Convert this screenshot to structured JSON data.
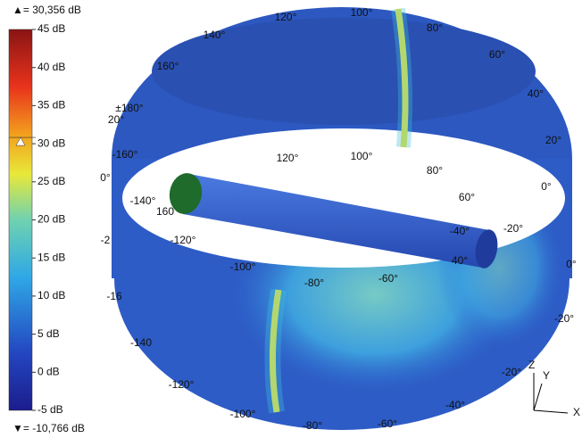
{
  "colorbar": {
    "max_label": "▲= 30,356 dB",
    "min_label": "▼= -10,766 dB",
    "lim": [
      -5,
      45
    ],
    "ticks": [
      {
        "value": 45,
        "label": "45 dB"
      },
      {
        "value": 40,
        "label": "40 dB"
      },
      {
        "value": 35,
        "label": "35 dB"
      },
      {
        "value": 30,
        "label": "30 dB"
      },
      {
        "value": 25,
        "label": "25 dB"
      },
      {
        "value": 20,
        "label": "20 dB"
      },
      {
        "value": 15,
        "label": "15 dB"
      },
      {
        "value": 10,
        "label": "10 dB"
      },
      {
        "value": 5,
        "label": "5 dB"
      },
      {
        "value": 0,
        "label": "0 dB"
      },
      {
        "value": -5,
        "label": "-5 dB"
      }
    ],
    "marker": 30.356
  },
  "angle_labels": [
    "140°",
    "120°",
    "100°",
    "80°",
    "60°",
    "40°",
    "20°",
    "0°",
    "160°",
    "±180°",
    "20°",
    "-160°",
    "0°",
    "-140°",
    "160",
    "120°",
    "100°",
    "80°",
    "60°",
    "40°",
    "-20°",
    "-2",
    "-120°",
    "-100°",
    "-80°",
    "-60°",
    "-40°",
    "-16",
    "-140",
    "-120°",
    "-100°",
    "-80°",
    "-60°",
    "-40°",
    "-20°",
    "-20°",
    "0°"
  ],
  "axes": [
    "Z",
    "Y",
    "X"
  ]
}
